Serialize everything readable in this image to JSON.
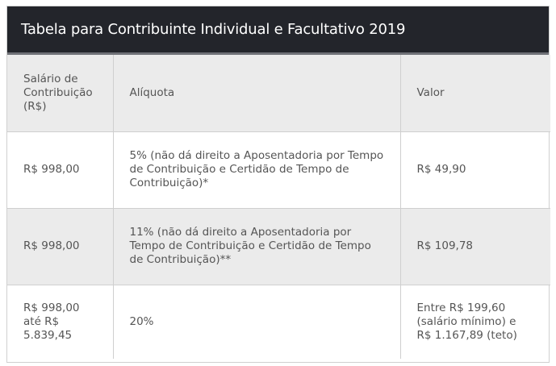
{
  "title": "Tabela para Contribuinte Individual e Facultativo 2019",
  "header": {
    "col1": "Salário de Contribuição (R$)",
    "col2": "Alíquota",
    "col3": "Valor"
  },
  "rows": [
    {
      "salario": "R$ 998,00",
      "aliquota": "5% (não dá direito a Aposentadoria por Tempo de Contribuição e Certidão de Tempo de Contribuição)*",
      "valor": "R$ 49,90"
    },
    {
      "salario": "R$ 998,00",
      "aliquota": "11% (não dá direito a Aposentadoria por Tempo de Contribuição e Certidão de Tempo de Contribuição)**",
      "valor": "R$ 109,78"
    },
    {
      "salario": "R$ 998,00 até R$ 5.839,45",
      "aliquota": "20%",
      "valor": "Entre R$ 199,60 (salário mínimo) e R$ 1.167,89 (teto)"
    }
  ]
}
